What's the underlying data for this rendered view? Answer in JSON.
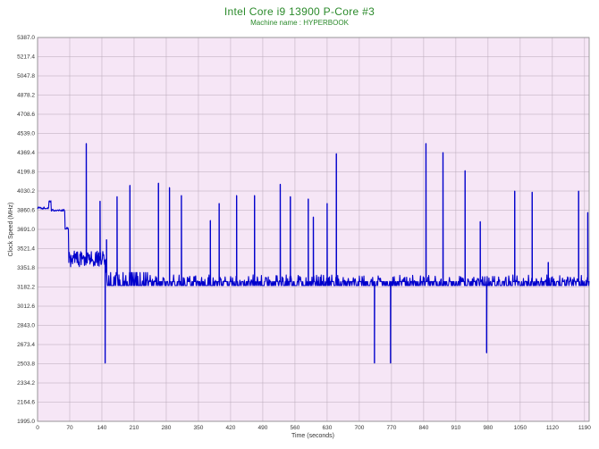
{
  "chart_data": {
    "type": "line",
    "title": "Intel Core i9 13900 P-Core #3",
    "subtitle": "Machine name : HYPERBOOK",
    "xlabel": "Time (seconds)",
    "ylabel": "Clock Speed (MHz)",
    "xlim": [
      0,
      1200
    ],
    "ylim": [
      1995.0,
      5387.0
    ],
    "x_ticks": [
      0,
      70,
      140,
      210,
      280,
      350,
      420,
      490,
      560,
      630,
      700,
      770,
      840,
      910,
      980,
      1050,
      1120,
      1190
    ],
    "x_tick_labels": [
      "0",
      "70",
      "140",
      "210",
      "280",
      "350",
      "420",
      "490",
      "560",
      "630",
      "700",
      "770",
      "840",
      "910",
      "980",
      "1050",
      "1120",
      "1190"
    ],
    "y_ticks": [
      1995.0,
      2164.6,
      2334.2,
      2503.8,
      2673.4,
      2843.0,
      3012.6,
      3182.2,
      3351.8,
      3521.4,
      3691.0,
      3860.6,
      4030.2,
      4199.8,
      4369.4,
      4539.0,
      4708.6,
      4878.2,
      5047.8,
      5217.4,
      5387.0
    ],
    "y_tick_labels": [
      "1995.0",
      "2164.6",
      "2334.2",
      "2503.8",
      "2673.4",
      "2843.0",
      "3012.6",
      "3182.2",
      "3351.8",
      "3521.4",
      "3691.0",
      "3860.6",
      "4030.2",
      "4199.8",
      "4369.4",
      "4539.0",
      "4708.6",
      "4878.2",
      "5047.8",
      "5217.4",
      "5387.0"
    ],
    "grid": true,
    "colors": {
      "plot_background": "#f6e6f6",
      "grid": "#b8a8b8",
      "line": "#0000cc",
      "title": "#2b8a2b"
    },
    "series": [
      {
        "values": {
          "baseline": 3195,
          "segments": [
            {
              "x": [
                0,
                25
              ],
              "y": 3880
            },
            {
              "x": [
                25,
                30
              ],
              "y": 3935
            },
            {
              "x": [
                30,
                60
              ],
              "y": 3860
            },
            {
              "x": [
                60,
                68
              ],
              "y": 3700
            },
            {
              "x": [
                68,
                150
              ],
              "y": 3420
            },
            {
              "x": [
                150,
                240
              ],
              "y": 3310
            },
            {
              "x": [
                240,
                1200
              ],
              "y": 3230
            }
          ],
          "spikes": [
            {
              "x": 106,
              "y": 4450
            },
            {
              "x": 136,
              "y": 3940
            },
            {
              "x": 147,
              "y": 2510
            },
            {
              "x": 150,
              "y": 3600
            },
            {
              "x": 173,
              "y": 3980
            },
            {
              "x": 201,
              "y": 4080
            },
            {
              "x": 263,
              "y": 4100
            },
            {
              "x": 287,
              "y": 4060
            },
            {
              "x": 313,
              "y": 3990
            },
            {
              "x": 376,
              "y": 3770
            },
            {
              "x": 395,
              "y": 3920
            },
            {
              "x": 433,
              "y": 3990
            },
            {
              "x": 472,
              "y": 3990
            },
            {
              "x": 528,
              "y": 4090
            },
            {
              "x": 550,
              "y": 3980
            },
            {
              "x": 589,
              "y": 3960
            },
            {
              "x": 600,
              "y": 3800
            },
            {
              "x": 630,
              "y": 3920
            },
            {
              "x": 650,
              "y": 4360
            },
            {
              "x": 733,
              "y": 2510
            },
            {
              "x": 768,
              "y": 2510
            },
            {
              "x": 845,
              "y": 4450
            },
            {
              "x": 882,
              "y": 4370
            },
            {
              "x": 930,
              "y": 4210
            },
            {
              "x": 963,
              "y": 3760
            },
            {
              "x": 977,
              "y": 2600
            },
            {
              "x": 1038,
              "y": 4030
            },
            {
              "x": 1076,
              "y": 4020
            },
            {
              "x": 1111,
              "y": 3400
            },
            {
              "x": 1177,
              "y": 4030
            },
            {
              "x": 1197,
              "y": 3840
            }
          ]
        }
      }
    ]
  }
}
